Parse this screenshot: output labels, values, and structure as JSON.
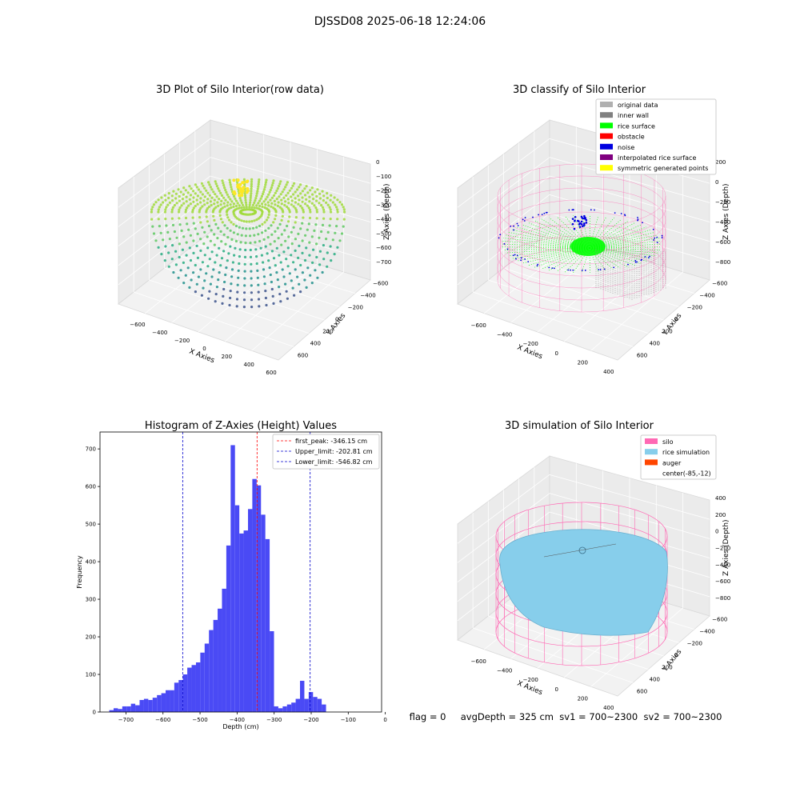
{
  "figure": {
    "suptitle": "DJSSD08 2025-06-18 12:24:06",
    "status_line": "flag = 0     avgDepth = 325 cm  sv1 = 700~2300  sv2 = 700~2300"
  },
  "colors": {
    "hist_bar": "#4a4af5",
    "peak_line": "#ff0000",
    "limit_line": "#0000cc",
    "silo": "#ff69b4",
    "rice_simulation": "#87ceeb",
    "auger": "#ff4500",
    "rice_surface": "#00ff00",
    "noise": "#0000e0",
    "inner_wall": "#808080",
    "original_data": "#b0b0b0",
    "obstacle": "#ff0000",
    "interpolated_rice_surface": "#800080",
    "symmetric_generated_points": "#ffff00"
  },
  "plots3d": [
    {
      "title": "3D Plot of Silo Interior(row data)",
      "xlabel": "X Axies",
      "ylabel": "Y Axies",
      "zlabel": "Z Axies (Depth)",
      "x_ticks": [
        "−600",
        "−400",
        "−200",
        "0",
        "200",
        "400",
        "600"
      ],
      "y_ticks": [
        "−600",
        "−400",
        "−200",
        "0",
        "200",
        "400",
        "600"
      ],
      "z_ticks": [
        "0",
        "−100",
        "−200",
        "−300",
        "−400",
        "−500",
        "−600",
        "−700"
      ]
    },
    {
      "title": "3D classify of Silo Interior",
      "xlabel": "X Axies",
      "ylabel": "Y Axies",
      "zlabel": "Z Axies (Depth)",
      "x_ticks": [
        "−600",
        "−400",
        "−200",
        "0",
        "200",
        "400"
      ],
      "y_ticks": [
        "−600",
        "−400",
        "−200",
        "0",
        "200",
        "400",
        "600"
      ],
      "z_ticks": [
        "200",
        "0",
        "−200",
        "−400",
        "−600",
        "−800"
      ],
      "legend": [
        {
          "label": "original data",
          "color": "#b0b0b0"
        },
        {
          "label": "inner wall",
          "color": "#808080"
        },
        {
          "label": "rice surface",
          "color": "#00ff00"
        },
        {
          "label": "obstacle",
          "color": "#ff0000"
        },
        {
          "label": "noise",
          "color": "#0000e0"
        },
        {
          "label": "interpolated rice surface",
          "color": "#800080"
        },
        {
          "label": "symmetric generated points",
          "color": "#ffff00"
        }
      ]
    },
    {
      "title": "3D simulation of Silo Interior",
      "xlabel": "X Axies",
      "ylabel": "Y Axies",
      "zlabel": "Z Axies (Depth)",
      "x_ticks": [
        "−600",
        "−400",
        "−200",
        "0",
        "200",
        "400"
      ],
      "y_ticks": [
        "−600",
        "−400",
        "−200",
        "0",
        "200",
        "400",
        "600"
      ],
      "z_ticks": [
        "400",
        "200",
        "0",
        "−200",
        "−400",
        "−600",
        "−800"
      ],
      "legend": [
        {
          "label": "silo",
          "color": "#ff69b4"
        },
        {
          "label": "rice simulation",
          "color": "#87ceeb"
        },
        {
          "label": "auger",
          "color": "#ff4500"
        },
        {
          "label": "center(-85,-12)",
          "color": ""
        }
      ]
    }
  ],
  "chart_data": {
    "type": "bar",
    "title": "Histogram of Z-Axies (Height) Values",
    "xlabel": "Depth (cm)",
    "ylabel": "Frequency",
    "xlim": [
      -770,
      -10
    ],
    "ylim": [
      0,
      745
    ],
    "x_ticks": [
      -700,
      -600,
      -500,
      -400,
      -300,
      -200,
      -100,
      0
    ],
    "x_tick_labels": [
      "−700",
      "−600",
      "−500",
      "−400",
      "−300",
      "−200",
      "−100",
      "0"
    ],
    "y_ticks": [
      0,
      100,
      200,
      300,
      400,
      500,
      600,
      700
    ],
    "y_tick_labels": [
      "0",
      "100",
      "200",
      "300",
      "400",
      "500",
      "600",
      "700"
    ],
    "bin_start": -745,
    "bin_width": 11.7,
    "values": [
      5,
      10,
      8,
      15,
      15,
      22,
      18,
      32,
      35,
      32,
      38,
      45,
      50,
      58,
      58,
      78,
      85,
      100,
      118,
      125,
      132,
      158,
      182,
      218,
      245,
      275,
      328,
      443,
      710,
      550,
      475,
      483,
      540,
      620,
      603,
      525,
      460,
      215,
      15,
      10,
      15,
      20,
      25,
      35,
      83,
      35,
      53,
      40,
      35,
      20
    ],
    "grid": false,
    "legend_position": "upper right",
    "vlines": [
      {
        "label": "first_peak: -346.15 cm",
        "x": -346.15,
        "color": "#ff0000"
      },
      {
        "label": "Upper_limit: -202.81 cm",
        "x": -202.81,
        "color": "#0000cc"
      },
      {
        "label": "Lower_limit: -546.82 cm",
        "x": -546.82,
        "color": "#0000cc"
      }
    ]
  }
}
